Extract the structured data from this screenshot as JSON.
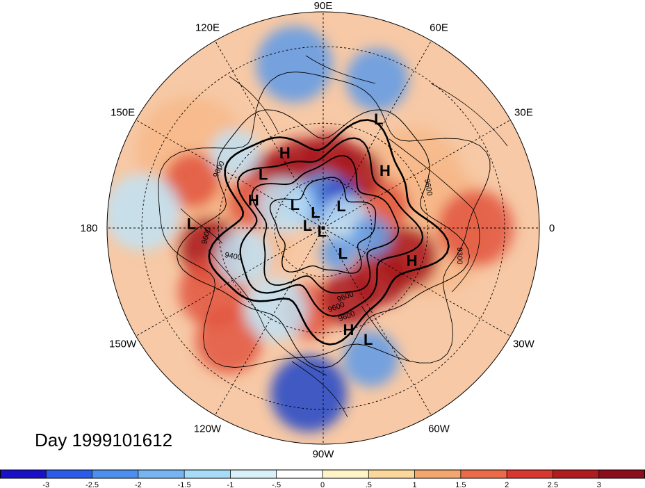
{
  "title": "Day 1999101612",
  "map": {
    "projection": "north-polar-stereographic",
    "longitude_labels": [
      {
        "text": "90E",
        "lon": 90
      },
      {
        "text": "60E",
        "lon": 60
      },
      {
        "text": "30E",
        "lon": 30
      },
      {
        "text": "0",
        "lon": 0
      },
      {
        "text": "30W",
        "lon": -30
      },
      {
        "text": "60W",
        "lon": -60
      },
      {
        "text": "90W",
        "lon": -90
      },
      {
        "text": "120W",
        "lon": -120
      },
      {
        "text": "150W",
        "lon": -150
      },
      {
        "text": "180",
        "lon": 180
      },
      {
        "text": "150E",
        "lon": 150
      },
      {
        "text": "120E",
        "lon": 120
      }
    ],
    "pressure_centers": [
      {
        "type": "L",
        "lon": 63,
        "lat": 22
      },
      {
        "type": "H",
        "lon": 43,
        "lat": 40
      },
      {
        "type": "H",
        "lon": 117,
        "lat": 40
      },
      {
        "type": "L",
        "lon": 138,
        "lat": 42
      },
      {
        "type": "H",
        "lon": 158,
        "lat": 45
      },
      {
        "type": "L",
        "lon": 178,
        "lat": 18
      },
      {
        "type": "L",
        "lon": 140,
        "lat": 67
      },
      {
        "type": "L",
        "lon": 116,
        "lat": 79
      },
      {
        "type": "L",
        "lon": 51,
        "lat": 72
      },
      {
        "type": "L",
        "lon": 170,
        "lat": 80
      },
      {
        "type": "L",
        "lon": -110,
        "lat": 88
      },
      {
        "type": "L",
        "lon": -52,
        "lat": 70
      },
      {
        "type": "H",
        "lon": -20,
        "lat": 35
      },
      {
        "type": "H",
        "lon": -76,
        "lat": 30
      },
      {
        "type": "L",
        "lon": -68,
        "lat": 23
      }
    ],
    "contour_labels": [
      "9600",
      "9600",
      "9600",
      "9600",
      "9300",
      "9400",
      "9600",
      "9600"
    ]
  },
  "colorbar": {
    "colors": [
      "#1a10c8",
      "#2b5be8",
      "#4d8ff0",
      "#77b5f2",
      "#a6dcf8",
      "#d8f1f8",
      "#ffffff",
      "#fff4c8",
      "#fbd79a",
      "#f5a66e",
      "#eb6a48",
      "#d93630",
      "#b01c20",
      "#8c0e1c"
    ],
    "tick_labels": [
      "-3",
      "-2.5",
      "-2",
      "-1.5",
      "-1",
      "-.5",
      "0",
      ".5",
      "1",
      "1.5",
      "2",
      "2.5",
      "3"
    ]
  },
  "colors": {
    "strong_warm": "#a8171c",
    "warm": "#e2553e",
    "light_warm": "#f7b88a",
    "light_cool": "#bfe3f6",
    "cool": "#5d9ae8",
    "strong_cool": "#2244c8"
  }
}
